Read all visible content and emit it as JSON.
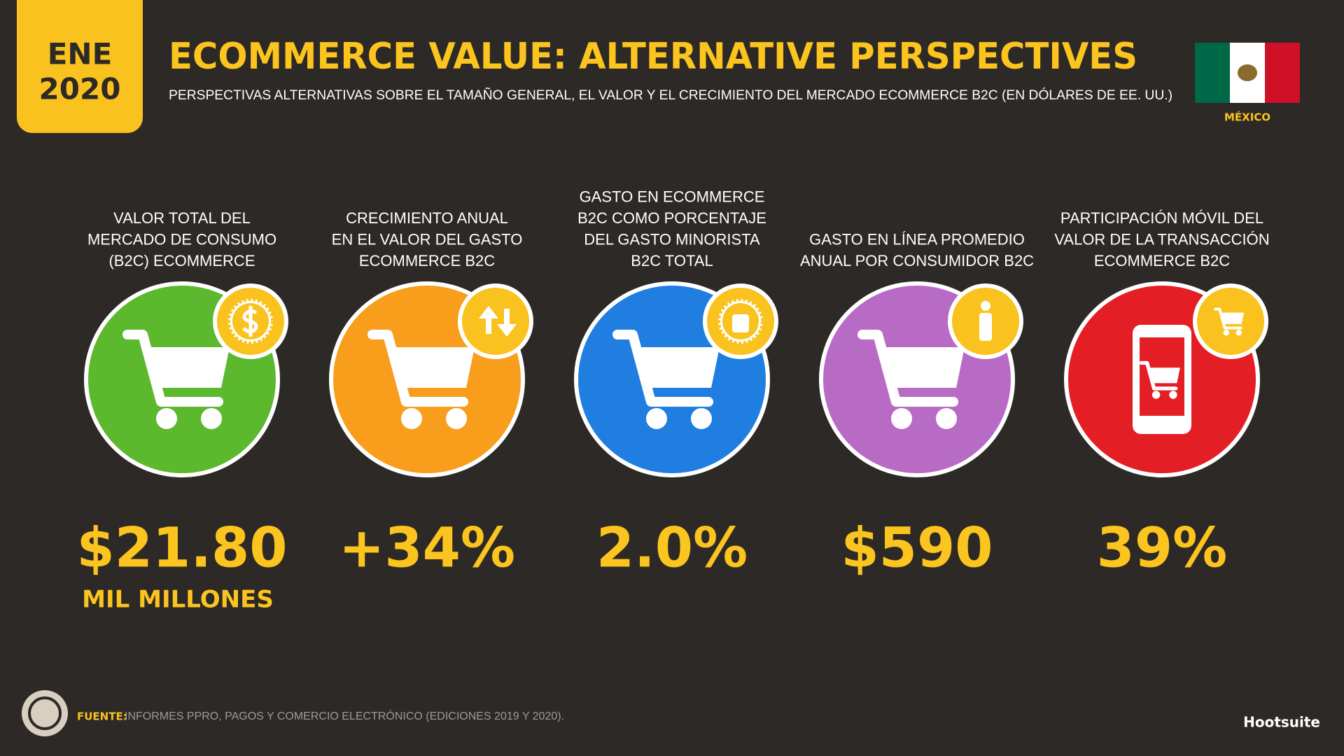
{
  "header": {
    "badge": [
      "ENE",
      "2020"
    ],
    "title": "ECOMMERCE VALUE: ALTERNATIVE PERSPECTIVES",
    "subtitle": "PERSPECTIVAS ALTERNATIVAS SOBRE EL TAMAÑO GENERAL, EL VALOR Y EL CRECIMIENTO DEL MERCADO ECOMMERCE B2C (EN DÓLARES DE EE. UU.)",
    "country": "MÉXICO"
  },
  "cards": [
    {
      "label": [
        "VALOR TOTAL DEL",
        "MERCADO DE CONSUMO",
        "(B2C) ECOMMERCE"
      ],
      "value": "$21.80",
      "unit": "MIL MILLONES",
      "color": "#5cb82c"
    },
    {
      "label": [
        "CRECIMIENTO ANUAL",
        "EN EL VALOR DEL GASTO",
        "ECOMMERCE B2C"
      ],
      "value": "+34%",
      "color": "#f99d1c"
    },
    {
      "label": [
        "GASTO EN ECOMMERCE",
        "B2C COMO PORCENTAJE",
        "DEL GASTO MINORISTA",
        "B2C TOTAL"
      ],
      "value": "2.0%",
      "color": "#1f7ee0"
    },
    {
      "label": [
        "GASTO EN LÍNEA PROMEDIO",
        "ANUAL POR CONSUMIDOR B2C"
      ],
      "value": "$590",
      "color": "#b86bc4"
    },
    {
      "label": [
        "PARTICIPACIÓN MÓVIL DEL",
        "VALOR DE LA TRANSACCIÓN",
        "ECOMMERCE B2C"
      ],
      "value": "39%",
      "color": "#e31e24"
    }
  ],
  "footer": {
    "source_label": "FUENTE:",
    "source_text": "INFORMES PPRO, PAGOS Y COMERCIO ELECTRÓNICO (EDICIONES 2019 Y 2020).",
    "brand": "Hootsuite"
  }
}
